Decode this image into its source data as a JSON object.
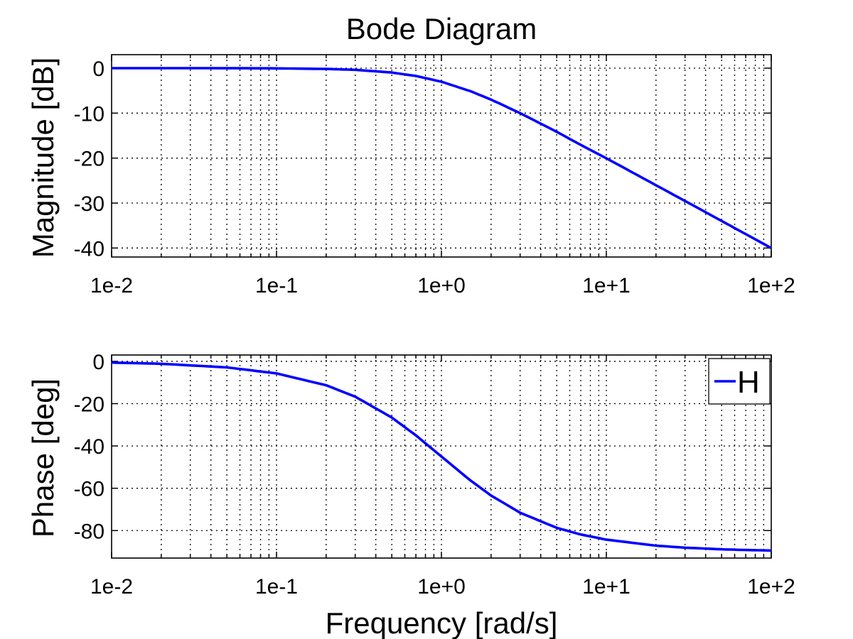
{
  "chart_data": [
    {
      "type": "line",
      "title": "Bode Diagram",
      "xlabel": "",
      "ylabel": "Magnitude [dB]",
      "xscale": "log",
      "xlim": [
        0.01,
        100
      ],
      "ylim": [
        -42,
        3
      ],
      "grid": true,
      "x_ticks": [
        0.01,
        0.1,
        1,
        10,
        100
      ],
      "x_tick_labels": [
        "1e-2",
        "1e-1",
        "1e+0",
        "1e+1",
        "1e+2"
      ],
      "y_ticks": [
        0,
        -10,
        -20,
        -30,
        -40
      ],
      "y_tick_labels": [
        "0",
        "-10",
        "-20",
        "-30",
        "-40"
      ],
      "series": [
        {
          "color": "#0000ff",
          "x": [
            0.01,
            0.02,
            0.05,
            0.1,
            0.2,
            0.3,
            0.5,
            0.7,
            1,
            1.5,
            2,
            3,
            5,
            7,
            10,
            20,
            30,
            50,
            70,
            100
          ],
          "y": [
            0.0,
            0.0,
            -0.01,
            -0.04,
            -0.17,
            -0.37,
            -0.97,
            -1.74,
            -3.01,
            -5.12,
            -6.99,
            -10.0,
            -14.15,
            -17.07,
            -20.04,
            -26.03,
            -29.54,
            -33.98,
            -36.9,
            -40.0
          ]
        }
      ]
    },
    {
      "type": "line",
      "title": "",
      "xlabel": "Frequency [rad/s]",
      "ylabel": "Phase [deg]",
      "xscale": "log",
      "xlim": [
        0.01,
        100
      ],
      "ylim": [
        -93,
        3
      ],
      "grid": true,
      "legend": {
        "entries": [
          "H"
        ],
        "placement": "top-right"
      },
      "x_ticks": [
        0.01,
        0.1,
        1,
        10,
        100
      ],
      "x_tick_labels": [
        "1e-2",
        "1e-1",
        "1e+0",
        "1e+1",
        "1e+2"
      ],
      "y_ticks": [
        0,
        -20,
        -40,
        -60,
        -80
      ],
      "y_tick_labels": [
        "0",
        "-20",
        "-40",
        "-60",
        "-80"
      ],
      "series": [
        {
          "name": "H",
          "color": "#0000ff",
          "x": [
            0.01,
            0.02,
            0.05,
            0.1,
            0.2,
            0.3,
            0.5,
            0.7,
            1,
            1.5,
            2,
            3,
            5,
            7,
            10,
            20,
            30,
            50,
            70,
            100
          ],
          "y": [
            -0.57,
            -1.15,
            -2.86,
            -5.71,
            -11.31,
            -16.7,
            -26.57,
            -34.99,
            -45.0,
            -56.31,
            -63.43,
            -71.57,
            -78.69,
            -81.87,
            -84.29,
            -87.14,
            -88.09,
            -88.85,
            -89.18,
            -89.43
          ]
        }
      ]
    }
  ]
}
